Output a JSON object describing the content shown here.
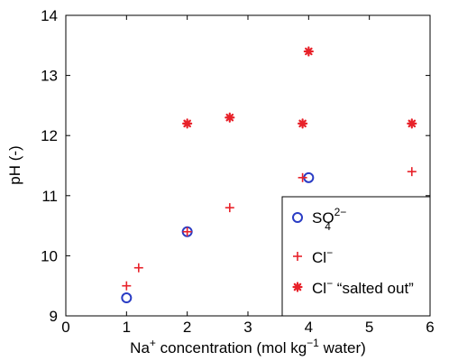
{
  "chart_data": {
    "type": "scatter",
    "title": "",
    "xlabel": {
      "base": "Na",
      "base_sup": "+",
      "middle": " concentration (mol kg",
      "middle_sup": "−1",
      "end": " water)"
    },
    "ylabel": "pH (-)",
    "xlim": [
      0,
      6
    ],
    "ylim": [
      9,
      14
    ],
    "xticks": [
      "0",
      "1",
      "2",
      "3",
      "4",
      "5",
      "6"
    ],
    "yticks": [
      "9",
      "10",
      "11",
      "12",
      "13",
      "14"
    ],
    "grid": false,
    "legend_position": "bottom-right",
    "series": [
      {
        "name": {
          "base": "SO",
          "sub": "4",
          "sup": "2−"
        },
        "marker": "circle",
        "color": "#2a3cc4",
        "points": [
          [
            1,
            9.3
          ],
          [
            2,
            10.4
          ],
          [
            4,
            11.3
          ]
        ]
      },
      {
        "name": {
          "base": "Cl",
          "sup": "−"
        },
        "marker": "plus",
        "color": "#e8222a",
        "points": [
          [
            1,
            9.5
          ],
          [
            1.2,
            9.8
          ],
          [
            2,
            10.4
          ],
          [
            2.7,
            10.8
          ],
          [
            3.9,
            11.3
          ],
          [
            5.7,
            11.4
          ]
        ]
      },
      {
        "name": {
          "base": "Cl",
          "sup": "−",
          "rest": " “salted out”"
        },
        "marker": "asterisk",
        "color": "#e8222a",
        "points": [
          [
            2,
            12.2
          ],
          [
            2.7,
            12.3
          ],
          [
            3.9,
            12.2
          ],
          [
            4,
            13.4
          ],
          [
            5.7,
            12.2
          ]
        ]
      }
    ]
  }
}
